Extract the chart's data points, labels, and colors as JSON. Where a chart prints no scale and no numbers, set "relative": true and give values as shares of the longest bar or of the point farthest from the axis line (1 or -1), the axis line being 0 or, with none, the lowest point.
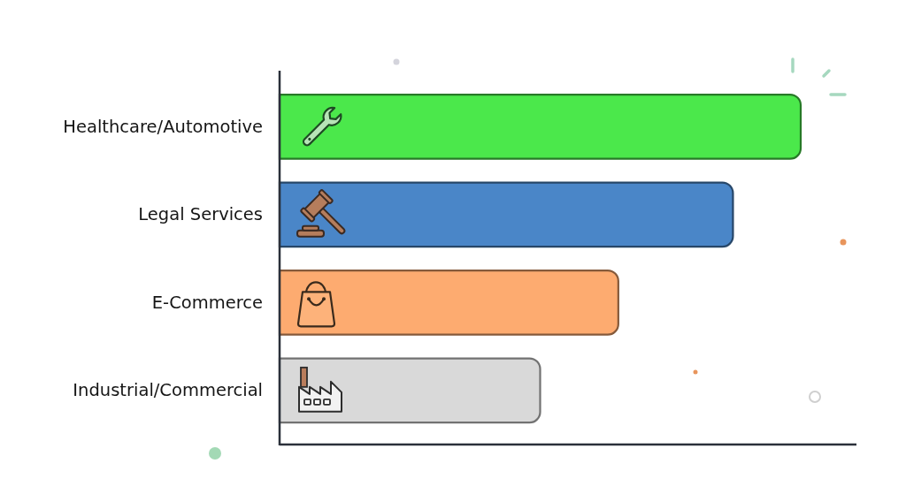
{
  "chart_data": {
    "type": "bar",
    "orientation": "horizontal",
    "relative": true,
    "categories": [
      "Healthcare/Automotive",
      "Legal Services",
      "E-Commerce",
      "Industrial/Commercial"
    ],
    "values": [
      1,
      0.87,
      0.65,
      0.5
    ],
    "colors": [
      "#4be84b",
      "#4a86c8",
      "#fdab70",
      "#d9d9d9"
    ]
  }
}
